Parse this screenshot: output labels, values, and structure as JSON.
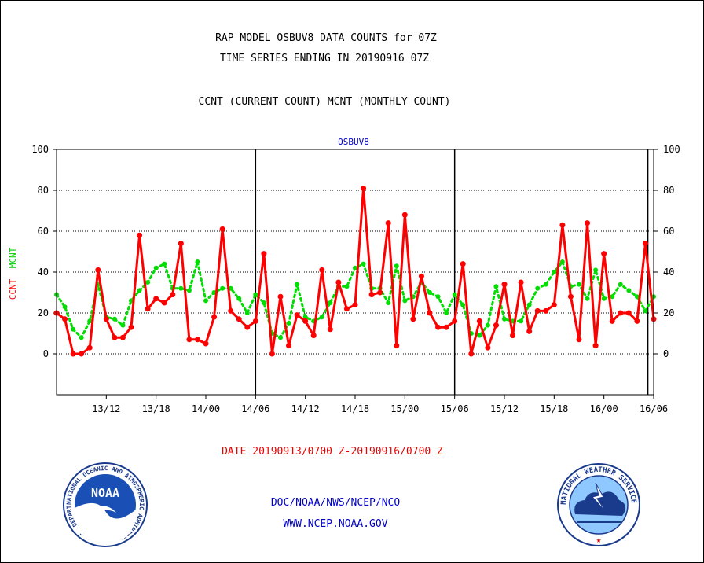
{
  "header": {
    "line1": "RAP MODEL OSBUV8 DATA COUNTS for 07Z",
    "line2": "TIME SERIES ENDING IN 20190916 07Z",
    "line3": "CCNT (CURRENT COUNT) MCNT (MONTHLY COUNT)"
  },
  "footer": {
    "date_range": "DATE 20190913/0700 Z-20190916/0700 Z",
    "org": "DOC/NOAA/NWS/NCEP/NCO",
    "url": "WWW.NCEP.NOAA.GOV"
  },
  "logos": {
    "noaa_text": "NOAA",
    "noaa_ring": "NATIONAL OCEANIC AND ATMOSPHERIC ADMINISTRATION • U.S. DEPARTMENT OF COMMERCE •",
    "nws_ring": "NATIONAL WEATHER SERVICE"
  },
  "colors": {
    "ccnt": "#ff0000",
    "mcnt": "#00dd00",
    "title_blue": "#0000cc",
    "footer_red": "#ee0000",
    "footer_blue": "#0000cc"
  },
  "chart_data": {
    "type": "line",
    "title": "OSBUV8",
    "ylabel_ccnt": "CCNT",
    "ylabel_mcnt": "MCNT",
    "ylim": [
      -20,
      100
    ],
    "yticks": [
      0,
      20,
      40,
      60,
      80,
      100
    ],
    "grid": true,
    "xlim": [
      0,
      72
    ],
    "xticks": [
      {
        "x": 6,
        "label": "13/12"
      },
      {
        "x": 12,
        "label": "13/18"
      },
      {
        "x": 18,
        "label": "14/00"
      },
      {
        "x": 24,
        "label": "14/06"
      },
      {
        "x": 30,
        "label": "14/12"
      },
      {
        "x": 36,
        "label": "14/18"
      },
      {
        "x": 42,
        "label": "15/00"
      },
      {
        "x": 48,
        "label": "15/06"
      },
      {
        "x": 54,
        "label": "15/12"
      },
      {
        "x": 60,
        "label": "15/18"
      },
      {
        "x": 66,
        "label": "16/00"
      },
      {
        "x": 72,
        "label": "16/06"
      }
    ],
    "day_lines": [
      24,
      48,
      71.3
    ],
    "series": [
      {
        "name": "CCNT",
        "values": [
          20,
          17,
          0,
          0,
          3,
          41,
          17,
          8,
          8,
          13,
          58,
          22,
          27,
          25,
          29,
          54,
          7,
          7,
          5,
          18,
          61,
          21,
          17,
          13,
          16,
          49,
          0,
          28,
          4,
          19,
          16,
          9,
          41,
          12,
          35,
          22,
          24,
          81,
          29,
          30,
          64,
          4,
          68,
          17,
          38,
          20,
          13,
          13,
          16,
          44,
          0,
          16,
          3,
          14,
          34,
          9,
          35,
          11,
          21,
          21,
          24,
          63,
          28,
          7,
          64,
          4,
          49,
          16,
          20,
          20,
          16,
          54,
          17
        ]
      },
      {
        "name": "MCNT",
        "values": [
          29,
          23,
          12,
          8,
          16,
          34,
          18,
          17,
          14,
          26,
          31,
          35,
          42,
          44,
          32,
          32,
          31,
          45,
          26,
          30,
          32,
          32,
          27,
          20,
          29,
          25,
          10,
          8,
          15,
          34,
          18,
          16,
          18,
          25,
          33,
          33,
          42,
          44,
          32,
          32,
          25,
          43,
          26,
          28,
          35,
          30,
          28,
          20,
          29,
          24,
          10,
          9,
          14,
          33,
          17,
          16,
          16,
          24,
          32,
          34,
          40,
          45,
          33,
          34,
          27,
          41,
          27,
          28,
          34,
          31,
          28,
          21,
          28
        ]
      }
    ]
  }
}
